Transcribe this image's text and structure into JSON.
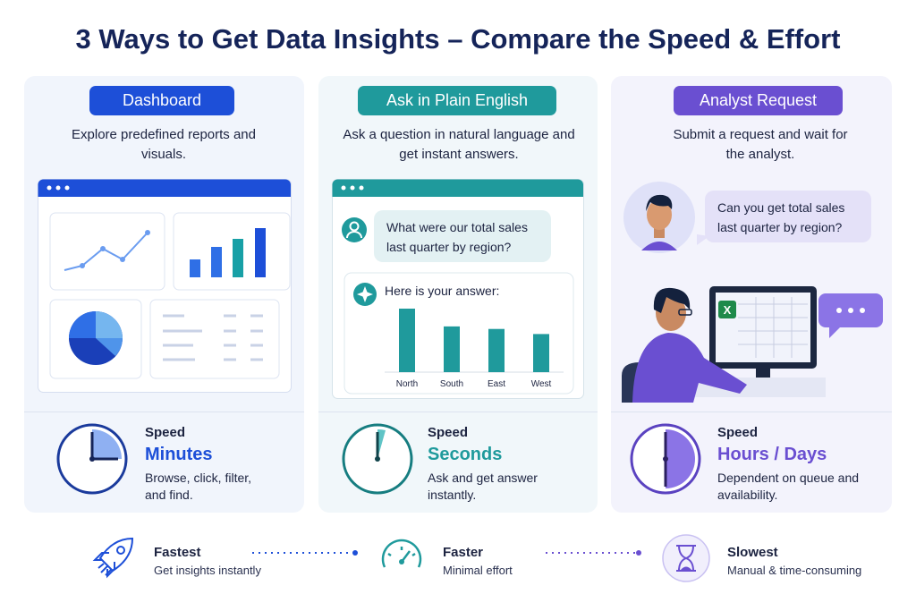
{
  "title": "3 Ways to Get Data Insights – Compare the Speed & Effort",
  "panels": [
    {
      "label": "Dashboard",
      "description": "Explore predefined reports and visuals.",
      "speed_label": "Speed",
      "speed": "Minutes",
      "speed_note": "Browse, click, filter, and find."
    },
    {
      "label": "Ask in Plain English",
      "description": "Ask a question in natural language and get instant answers.",
      "question": "What were our total sales last quarter by region?",
      "answer_heading": "Here is your answer:",
      "answer_chart": {
        "type": "bar",
        "categories": [
          "North",
          "South",
          "East",
          "West"
        ],
        "values": [
          100,
          72,
          68,
          60
        ],
        "color": "#1f9a9c"
      },
      "speed_label": "Speed",
      "speed": "Seconds",
      "speed_note": "Ask and get answer instantly."
    },
    {
      "label": "Analyst Request",
      "description": "Submit a request and wait for the analyst.",
      "question": "Can you get total sales last quarter by region?",
      "speed_label": "Speed",
      "speed": "Hours / Days",
      "speed_note": "Dependent on queue and availability."
    }
  ],
  "footer": [
    {
      "label": "Fastest",
      "note": "Get insights instantly"
    },
    {
      "label": "Faster",
      "note": "Minimal effort"
    },
    {
      "label": "Slowest",
      "note": "Manual & time-consuming"
    }
  ]
}
